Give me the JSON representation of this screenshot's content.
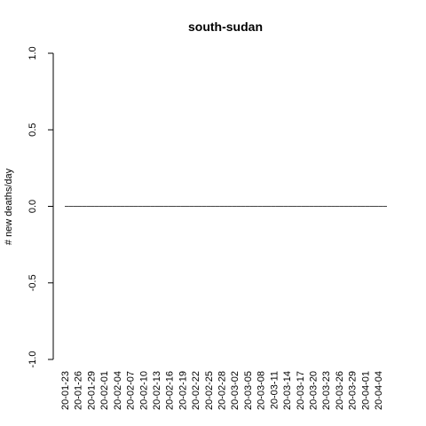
{
  "chart_data": {
    "type": "bar",
    "title": "south-sudan",
    "xlabel": "",
    "ylabel": "# new deaths/day",
    "ylim": [
      -1.0,
      1.0
    ],
    "yticks": [
      "-1.0",
      "-0.5",
      "0.0",
      "0.5",
      "1.0"
    ],
    "x_tick_labels": [
      "20-01-23",
      "20-01-26",
      "20-01-29",
      "20-02-01",
      "20-02-04",
      "20-02-07",
      "20-02-10",
      "20-02-13",
      "20-02-16",
      "20-02-19",
      "20-02-22",
      "20-02-25",
      "20-02-28",
      "20-03-02",
      "20-03-05",
      "20-03-08",
      "20-03-11",
      "20-03-14",
      "20-03-17",
      "20-03-20",
      "20-03-23",
      "20-03-26",
      "20-03-29",
      "20-04-01",
      "20-04-04"
    ],
    "x_start": "2020-01-22",
    "x_end": "2020-04-05",
    "values_all": 0,
    "grid": false
  }
}
